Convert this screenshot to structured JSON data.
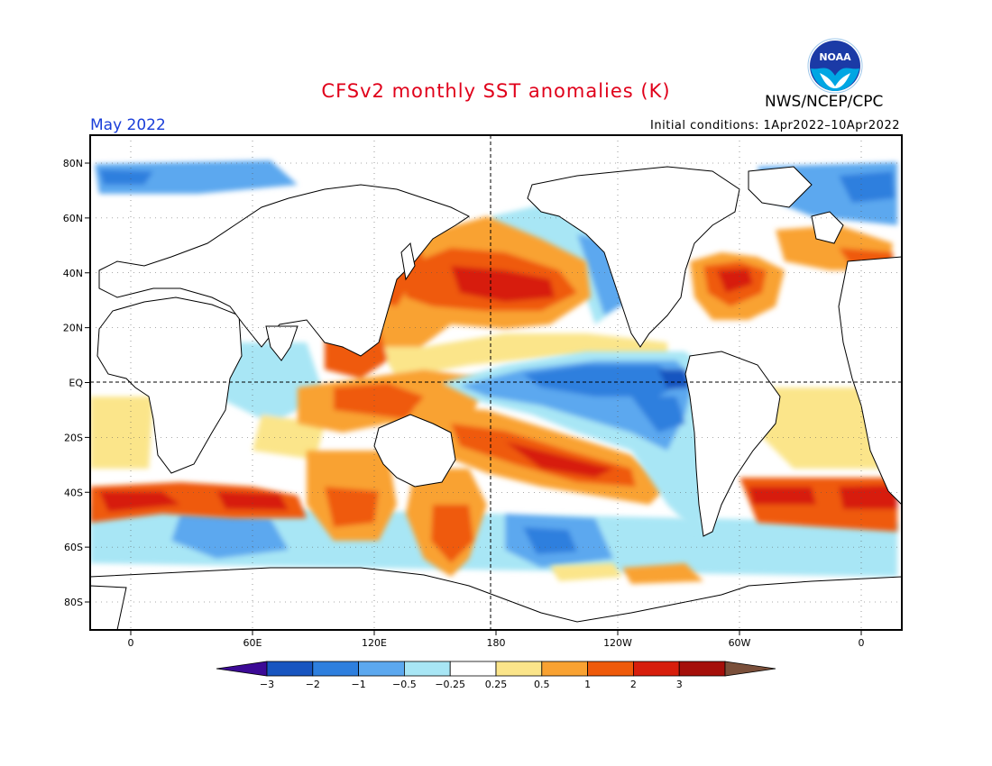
{
  "title": "CFSv2 monthly SST anomalies (K)",
  "agency": "NWS/NCEP/CPC",
  "logo_text": "NOAA",
  "month": "May 2022",
  "initial_conditions": "Initial conditions: 1Apr2022–10Apr2022",
  "lat_labels": [
    "80N",
    "60N",
    "40N",
    "20N",
    "EQ",
    "20S",
    "40S",
    "60S",
    "80S"
  ],
  "lon_labels": [
    "0",
    "60E",
    "120E",
    "180",
    "120W",
    "60W",
    "0"
  ],
  "colorbar": {
    "ticks": [
      "−3",
      "−2",
      "−1",
      "−0.5",
      "−0.25",
      "0.25",
      "0.5",
      "1",
      "2",
      "3"
    ],
    "colors": [
      "#3c0a96",
      "#1855c0",
      "#2e7fde",
      "#5ca8ef",
      "#a8e6f5",
      "#ffffff",
      "#fbe58a",
      "#f9a232",
      "#ef5a0a",
      "#d71e0c",
      "#a50f0a",
      "#7a4f3a"
    ]
  },
  "chart_data": {
    "type": "heatmap",
    "variable": "SST anomaly (K)",
    "month": "May 2022",
    "lat_range": [
      -90,
      90
    ],
    "lon_range": [
      -20,
      380
    ],
    "features": [
      {
        "name": "equatorial-pacific-cold-tongue",
        "lon": [
          170,
          280
        ],
        "lat": [
          -12,
          10
        ],
        "anomaly": -1.5
      },
      {
        "name": "north-pacific-warm-anomaly",
        "lon": [
          145,
          230
        ],
        "lat": [
          20,
          45
        ],
        "anomaly": 1.6
      },
      {
        "name": "south-pacific-warm-diagonal",
        "lon": [
          160,
          250
        ],
        "lat": [
          -45,
          -10
        ],
        "anomaly": 1.5
      },
      {
        "name": "maritime-continent-warm",
        "lon": [
          95,
          165
        ],
        "lat": [
          -15,
          10
        ],
        "anomaly": 1.3
      },
      {
        "name": "northwest-atlantic-warm",
        "lon": [
          285,
          330
        ],
        "lat": [
          25,
          48
        ],
        "anomaly": 1.8
      },
      {
        "name": "southern-ocean-warm-band",
        "lon": [
          0,
          120
        ],
        "lat": [
          -50,
          -35
        ],
        "anomaly": 1.5
      },
      {
        "name": "south-pacific-cold-patch",
        "lon": [
          190,
          250
        ],
        "lat": [
          -62,
          -45
        ],
        "anomaly": -1.0
      }
    ]
  }
}
